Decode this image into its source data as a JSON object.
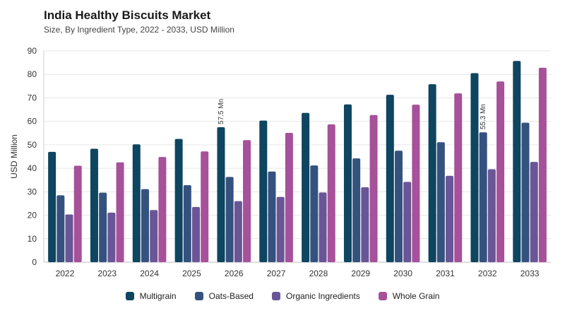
{
  "title": "India Healthy Biscuits Market",
  "subtitle": "Size, By Ingredient Type, 2022 - 2033, USD Million",
  "chart_data": {
    "type": "bar",
    "categories": [
      "2022",
      "2023",
      "2024",
      "2025",
      "2026",
      "2027",
      "2028",
      "2029",
      "2030",
      "2031",
      "2032",
      "2033"
    ],
    "series": [
      {
        "name": "Multigrain",
        "color": "#0e4560",
        "values": [
          47.0,
          48.3,
          50.2,
          52.5,
          57.5,
          60.3,
          63.6,
          67.2,
          71.3,
          75.8,
          80.5,
          85.7
        ]
      },
      {
        "name": "Oats-Based",
        "color": "#35527f",
        "values": [
          28.5,
          29.6,
          31.1,
          32.8,
          36.3,
          38.6,
          41.2,
          44.2,
          47.5,
          51.1,
          55.3,
          59.4
        ]
      },
      {
        "name": "Organic Ingredients",
        "color": "#6a5596",
        "values": [
          20.3,
          21.1,
          22.2,
          23.5,
          26.0,
          27.8,
          29.7,
          31.9,
          34.2,
          36.8,
          39.6,
          42.7
        ]
      },
      {
        "name": "Whole Grain",
        "color": "#a6519a",
        "values": [
          41.1,
          42.5,
          44.8,
          47.2,
          52.0,
          55.1,
          58.7,
          62.7,
          67.1,
          71.9,
          77.0,
          82.8
        ]
      }
    ],
    "ylabel": "USD Million",
    "ylim": [
      0,
      90
    ],
    "yticks": [
      0,
      10,
      20,
      30,
      40,
      50,
      60,
      70,
      80,
      90
    ],
    "grid": true,
    "legend_position": "bottom",
    "annotations": [
      {
        "text": "57.5 Mn",
        "category": "2026",
        "series": "Multigrain"
      },
      {
        "text": "55.3 Mn",
        "category": "2032",
        "series": "Oats-Based"
      }
    ]
  }
}
